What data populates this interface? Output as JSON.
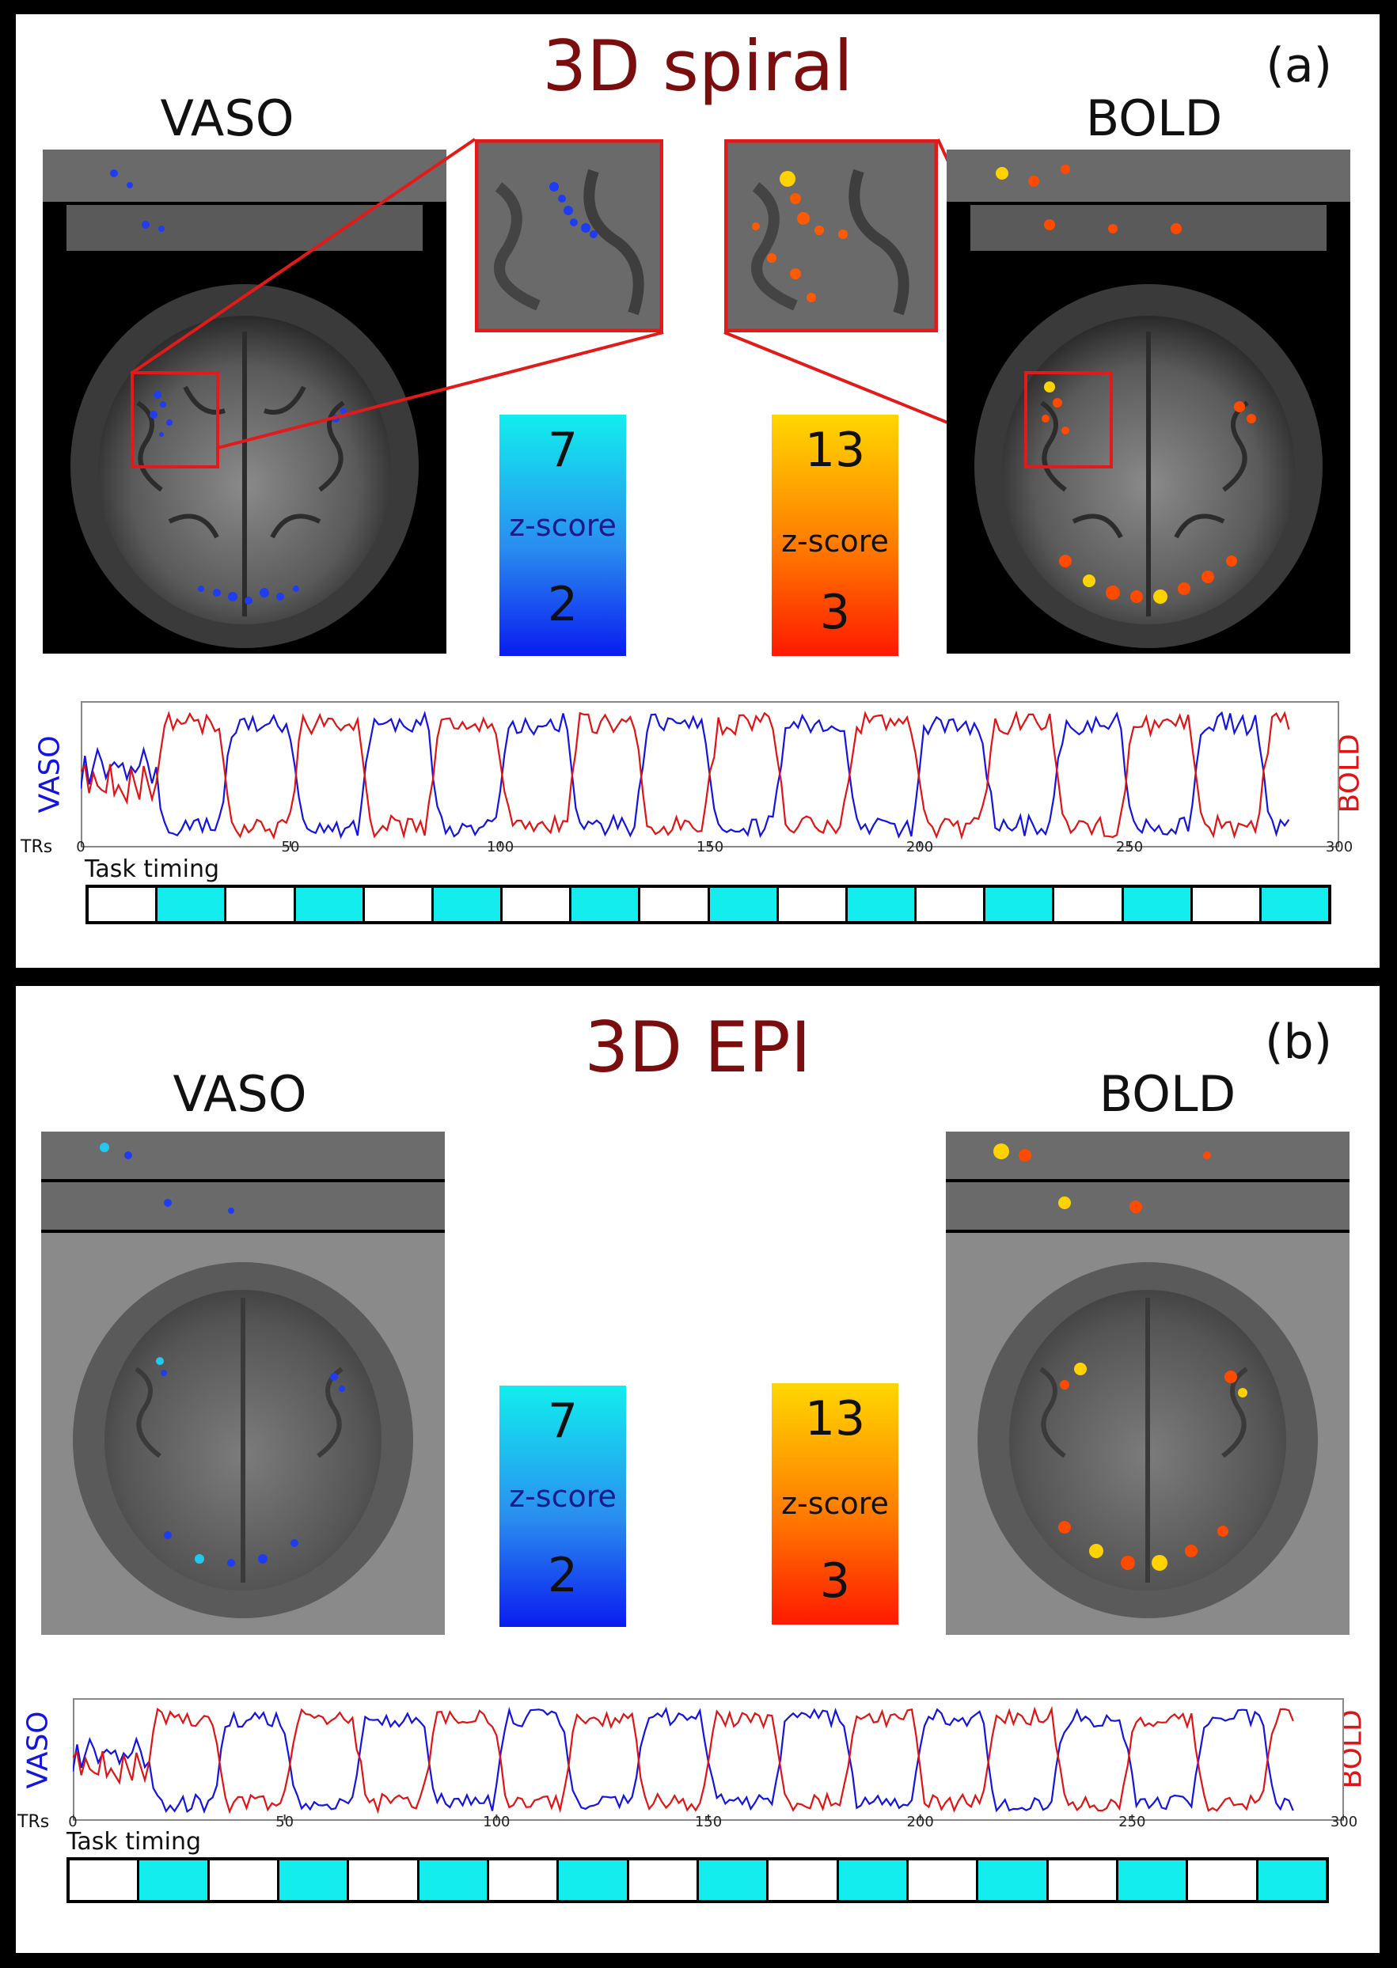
{
  "colors": {
    "title": "#7a0e0e",
    "vaso": "#1414e0",
    "bold": "#e01414",
    "task_on": "#13eded",
    "zoom_box": "#e21a1a"
  },
  "panels": [
    {
      "title": "3D spiral",
      "label": "(a)",
      "left_label": "VASO",
      "right_label": "BOLD",
      "vaso_scale": {
        "max": "7",
        "min": "2",
        "name": "z-score"
      },
      "bold_scale": {
        "max": "13",
        "min": "3",
        "name": "z-score"
      },
      "plot": {
        "left_axis": "VASO",
        "right_axis": "BOLD",
        "x_name": "TRs",
        "task_label": "Task timing"
      }
    },
    {
      "title": "3D EPI",
      "label": "(b)",
      "left_label": "VASO",
      "right_label": "BOLD",
      "vaso_scale": {
        "max": "7",
        "min": "2",
        "name": "z-score"
      },
      "bold_scale": {
        "max": "13",
        "min": "3",
        "name": "z-score"
      },
      "plot": {
        "left_axis": "VASO",
        "right_axis": "BOLD",
        "x_name": "TRs",
        "task_label": "Task timing"
      }
    }
  ],
  "chart_data": {
    "type": "line",
    "x_ticks": [
      "0",
      "50",
      "100",
      "150",
      "200",
      "250",
      "300"
    ],
    "xlim": [
      0,
      300
    ],
    "block_length_trs": 16.5,
    "n_blocks": 18,
    "task_blocks": [
      "rest",
      "task",
      "rest",
      "task",
      "rest",
      "task",
      "rest",
      "task",
      "rest",
      "task",
      "rest",
      "task",
      "rest",
      "task",
      "rest",
      "task",
      "rest",
      "task"
    ],
    "series": [
      {
        "name": "VASO",
        "phase": "high during rest"
      },
      {
        "name": "BOLD",
        "phase": "high during task"
      }
    ]
  }
}
